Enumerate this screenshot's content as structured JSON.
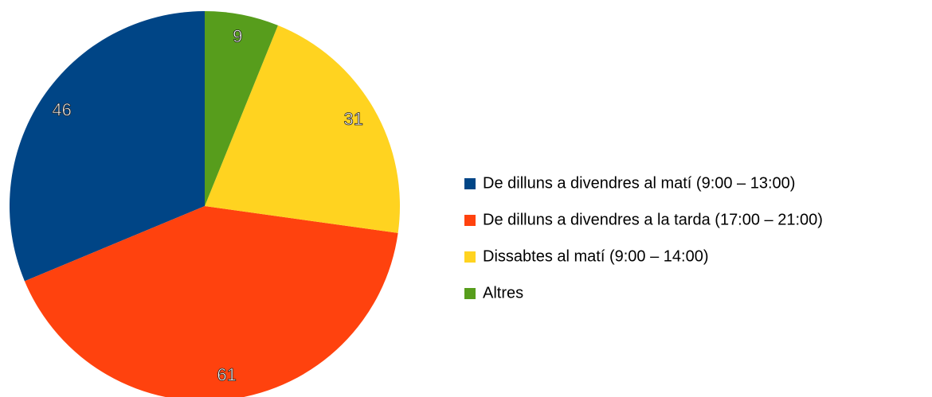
{
  "chart_data": {
    "type": "pie",
    "categories": [
      "De dilluns a divendres al matí (9:00 – 13:00)",
      "De dilluns a divendres a la tarda (17:00 – 21:00)",
      "Dissabtes al matí (9:00 – 14:00)",
      "Altres"
    ],
    "values": [
      46,
      61,
      31,
      9
    ],
    "colors": [
      "#004586",
      "#ff420e",
      "#ffd320",
      "#579d1c"
    ],
    "legend": "right"
  }
}
